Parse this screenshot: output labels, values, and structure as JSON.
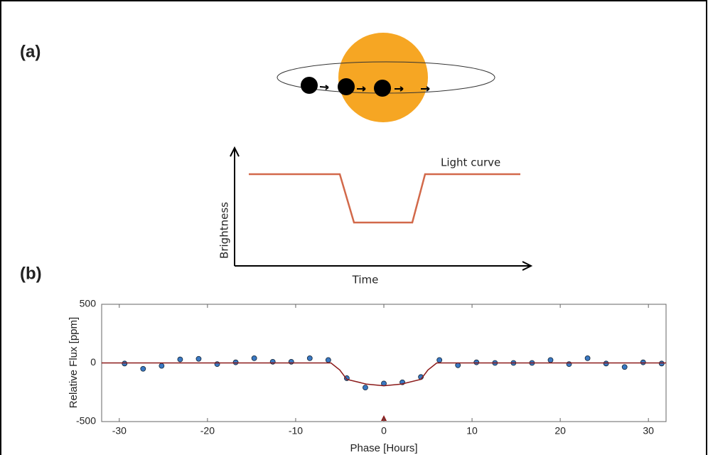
{
  "panels": {
    "a": {
      "label": "(a)",
      "curve_label": "Light curve",
      "y_label": "Brightness",
      "x_label": "Time"
    },
    "b": {
      "label": "(b)"
    }
  },
  "chart_data": {
    "type": "scatter",
    "x_label": "Phase [Hours]",
    "y_label": "Relative Flux [ppm]",
    "xlim": [
      -32,
      32
    ],
    "ylim": [
      -500,
      500
    ],
    "xticks": [
      -30,
      -20,
      -10,
      0,
      10,
      20,
      30
    ],
    "yticks": [
      -500,
      0,
      500
    ],
    "series": [
      {
        "color": "#3a78c2",
        "x": [
          -29.4,
          -27.3,
          -25.2,
          -23.1,
          -21,
          -18.9,
          -16.8,
          -14.7,
          -12.6,
          -10.5,
          -8.4,
          -6.3,
          -4.2,
          -2.1,
          0,
          2.1,
          4.2,
          6.3,
          8.4,
          10.5,
          12.6,
          14.7,
          16.8,
          18.9,
          21,
          23.1,
          25.2,
          27.3,
          29.4,
          31.5
        ],
        "values": [
          -5,
          -50,
          -25,
          30,
          35,
          -10,
          5,
          40,
          10,
          10,
          40,
          25,
          -130,
          -210,
          -175,
          -165,
          -120,
          25,
          -20,
          5,
          0,
          0,
          0,
          25,
          -10,
          40,
          -5,
          -35,
          5,
          -5
        ]
      },
      {
        "type": "line",
        "color": "#8b1a1a",
        "x": [
          -32,
          -6,
          -5,
          -4.2,
          -2,
          0,
          2,
          4.2,
          5,
          6,
          32
        ],
        "values": [
          0,
          0,
          -60,
          -140,
          -180,
          -195,
          -180,
          -140,
          -60,
          0,
          0
        ]
      }
    ]
  }
}
